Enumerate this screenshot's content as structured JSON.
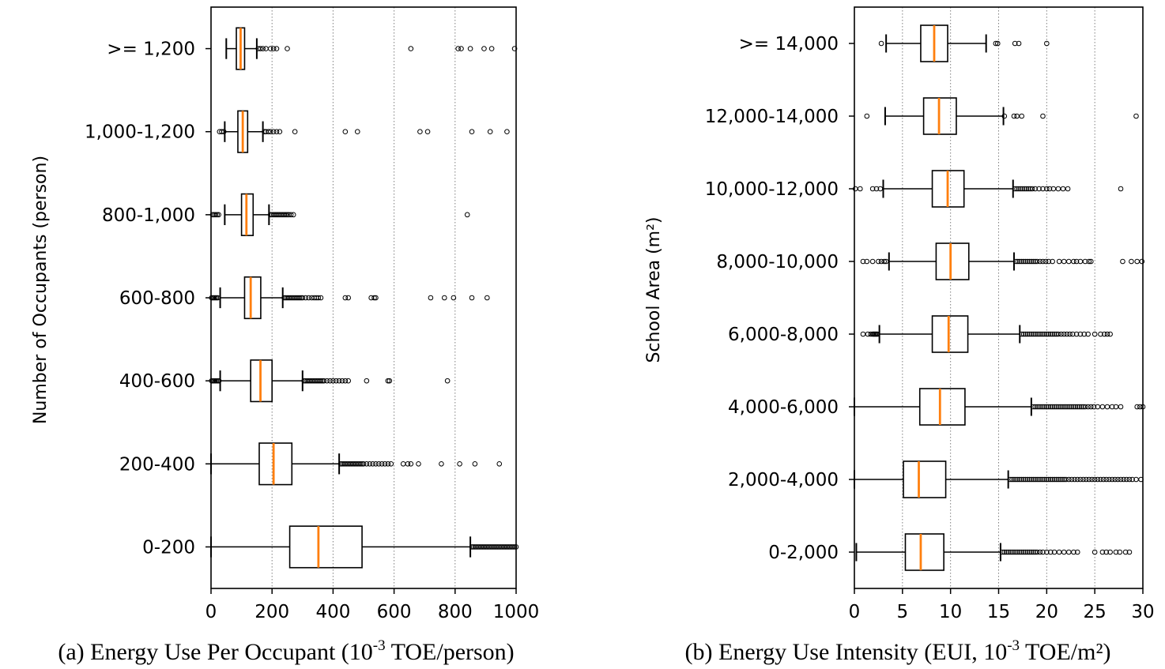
{
  "chart_data": [
    {
      "type": "boxplot",
      "orientation": "horizontal",
      "caption": "(a) Energy Use Per Occupant (10",
      "caption_sup": "-3",
      "caption_tail": " TOE/person)",
      "ylabel": "Number of Occupants (person)",
      "xlim": [
        0,
        1000
      ],
      "xticks": [
        0,
        200,
        400,
        600,
        800,
        1000
      ],
      "grid": "vertical dotted",
      "categories": [
        {
          "label": ">= 1,200",
          "whislo": 50,
          "q1": 83,
          "med": 97,
          "q3": 110,
          "whishi": 150,
          "fliers": [
            155,
            162,
            170,
            180,
            195,
            205,
            215,
            250,
            655,
            810,
            820,
            850,
            895,
            920,
            995
          ]
        },
        {
          "label": "1,000-1,200",
          "whislo": 45,
          "q1": 88,
          "med": 104,
          "q3": 120,
          "whishi": 170,
          "fliers": [
            28,
            35,
            42,
            175,
            180,
            188,
            195,
            205,
            215,
            225,
            275,
            440,
            480,
            685,
            710,
            855,
            915,
            970
          ]
        },
        {
          "label": "800-1,000",
          "whislo": 45,
          "q1": 100,
          "med": 116,
          "q3": 138,
          "whishi": 190,
          "fliers": [
            5,
            10,
            15,
            20,
            25,
            195,
            200,
            205,
            210,
            215,
            220,
            225,
            230,
            235,
            240,
            245,
            250,
            255,
            262,
            270,
            840
          ]
        },
        {
          "label": "600-800",
          "whislo": 30,
          "q1": 110,
          "med": 130,
          "q3": 163,
          "whishi": 235,
          "fliers": [
            2,
            6,
            10,
            14,
            18,
            22,
            240,
            245,
            250,
            255,
            260,
            265,
            270,
            275,
            280,
            285,
            290,
            295,
            300,
            310,
            320,
            330,
            338,
            345,
            352,
            360,
            440,
            450,
            525,
            535,
            540,
            720,
            765,
            795,
            855,
            905
          ]
        },
        {
          "label": "400-600",
          "whislo": 30,
          "q1": 130,
          "med": 162,
          "q3": 200,
          "whishi": 300,
          "fliers": [
            2,
            6,
            10,
            14,
            18,
            22,
            26,
            305,
            310,
            315,
            320,
            325,
            330,
            335,
            340,
            345,
            350,
            355,
            360,
            365,
            370,
            380,
            390,
            400,
            410,
            420,
            430,
            440,
            450,
            510,
            580,
            585,
            775
          ]
        },
        {
          "label": "200-400",
          "whislo": 0,
          "q1": 158,
          "med": 205,
          "q3": 265,
          "whishi": 420,
          "fliers": [
            425,
            430,
            435,
            440,
            445,
            450,
            455,
            460,
            465,
            470,
            475,
            480,
            485,
            490,
            495,
            500,
            510,
            520,
            530,
            540,
            550,
            560,
            570,
            580,
            590,
            630,
            645,
            655,
            680,
            755,
            815,
            865,
            945
          ]
        },
        {
          "label": "0-200",
          "whislo": 0,
          "q1": 258,
          "med": 352,
          "q3": 495,
          "whishi": 850,
          "fliers": [
            855,
            860,
            865,
            870,
            875,
            880,
            885,
            890,
            895,
            900,
            905,
            910,
            915,
            920,
            925,
            930,
            935,
            940,
            945,
            950,
            955,
            960,
            965,
            970,
            975,
            980,
            985,
            990,
            995,
            1000
          ]
        }
      ]
    },
    {
      "type": "boxplot",
      "orientation": "horizontal",
      "caption": "(b) Energy Use Intensity (EUI, 10",
      "caption_sup": "-3",
      "caption_tail": " TOE/m²)",
      "ylabel": "School Area (m²)",
      "xlim": [
        0,
        30
      ],
      "xticks": [
        0,
        5,
        10,
        15,
        20,
        25,
        30
      ],
      "grid": "vertical dotted",
      "categories": [
        {
          "label": ">= 14,000",
          "whislo": 3.3,
          "q1": 6.9,
          "med": 8.3,
          "q3": 9.7,
          "whishi": 13.7,
          "fliers": [
            2.8,
            14.7,
            14.9,
            16.7,
            17.1,
            20.0
          ]
        },
        {
          "label": "12,000-14,000",
          "whislo": 3.2,
          "q1": 7.2,
          "med": 8.8,
          "q3": 10.6,
          "whishi": 15.5,
          "fliers": [
            1.3,
            15.6,
            16.6,
            16.9,
            17.4,
            19.6,
            29.3
          ]
        },
        {
          "label": "10,000-12,000",
          "whislo": 3.0,
          "q1": 8.1,
          "med": 9.7,
          "q3": 11.4,
          "whishi": 16.5,
          "fliers": [
            0.1,
            0.6,
            1.9,
            2.3,
            2.7,
            16.7,
            16.9,
            17.1,
            17.3,
            17.5,
            17.7,
            17.9,
            18.1,
            18.3,
            18.5,
            18.8,
            19.2,
            19.6,
            20.0,
            20.3,
            20.7,
            21.2,
            21.7,
            22.2,
            27.7
          ]
        },
        {
          "label": "8,000-10,000",
          "whislo": 3.6,
          "q1": 8.5,
          "med": 10.0,
          "q3": 11.9,
          "whishi": 16.6,
          "fliers": [
            0.9,
            1.3,
            1.9,
            2.5,
            2.8,
            3.1,
            3.3,
            16.8,
            17.0,
            17.2,
            17.4,
            17.6,
            17.8,
            18.0,
            18.2,
            18.4,
            18.6,
            18.8,
            19.0,
            19.3,
            19.6,
            19.9,
            20.2,
            20.6,
            21.3,
            21.8,
            22.3,
            22.8,
            23.1,
            23.5,
            24.0,
            24.4,
            24.6,
            27.9,
            28.8,
            29.4,
            29.9
          ]
        },
        {
          "label": "6,000-8,000",
          "whislo": 2.6,
          "q1": 8.1,
          "med": 9.8,
          "q3": 11.8,
          "whishi": 17.2,
          "fliers": [
            0.9,
            1.4,
            1.7,
            1.9,
            2.0,
            2.1,
            2.2,
            2.3,
            2.4,
            17.4,
            17.6,
            17.8,
            18.0,
            18.2,
            18.4,
            18.6,
            18.8,
            19.0,
            19.2,
            19.4,
            19.6,
            19.8,
            20.0,
            20.2,
            20.4,
            20.6,
            20.8,
            21.0,
            21.2,
            21.5,
            21.8,
            22.1,
            22.4,
            22.7,
            23.1,
            23.5,
            23.9,
            24.3,
            25.0,
            25.6,
            26.0,
            26.3,
            26.6
          ]
        },
        {
          "label": "4,000-6,000",
          "whislo": 0,
          "q1": 6.8,
          "med": 8.9,
          "q3": 11.5,
          "whishi": 18.4,
          "fliers": [
            18.6,
            18.8,
            19.0,
            19.2,
            19.4,
            19.6,
            19.8,
            20.0,
            20.2,
            20.4,
            20.6,
            20.8,
            21.0,
            21.2,
            21.4,
            21.6,
            21.8,
            22.0,
            22.2,
            22.4,
            22.6,
            22.8,
            23.0,
            23.2,
            23.4,
            23.6,
            23.8,
            24.0,
            24.3,
            24.6,
            24.9,
            25.3,
            25.8,
            26.3,
            26.8,
            27.2,
            27.7,
            29.4,
            29.7,
            30.0
          ]
        },
        {
          "label": "2,000-4,000",
          "whislo": 0,
          "q1": 5.1,
          "med": 6.7,
          "q3": 9.5,
          "whishi": 16.0,
          "fliers": [
            16.2,
            16.4,
            16.6,
            16.8,
            17.0,
            17.2,
            17.4,
            17.6,
            17.8,
            18.0,
            18.2,
            18.4,
            18.6,
            18.8,
            19.0,
            19.2,
            19.4,
            19.6,
            19.8,
            20.0,
            20.2,
            20.4,
            20.6,
            20.8,
            21.0,
            21.2,
            21.4,
            21.6,
            21.8,
            22.0,
            22.3,
            22.6,
            22.9,
            23.2,
            23.5,
            23.8,
            24.1,
            24.4,
            24.7,
            25.0,
            25.3,
            25.6,
            25.9,
            26.2,
            26.5,
            26.8,
            27.1,
            27.4,
            27.7,
            28.0,
            28.3,
            28.6,
            28.9,
            29.3,
            29.8
          ]
        },
        {
          "label": "0-2,000",
          "whislo": 0.2,
          "q1": 5.3,
          "med": 6.9,
          "q3": 9.3,
          "whishi": 15.2,
          "fliers": [
            15.4,
            15.6,
            15.8,
            16.0,
            16.2,
            16.4,
            16.6,
            16.8,
            17.0,
            17.2,
            17.4,
            17.6,
            17.8,
            18.0,
            18.2,
            18.4,
            18.6,
            18.8,
            19.0,
            19.3,
            19.6,
            20.0,
            20.4,
            20.8,
            21.3,
            21.8,
            22.3,
            22.8,
            23.2,
            25.0,
            25.8,
            26.2,
            26.6,
            27.2,
            27.6,
            28.2,
            28.6
          ]
        }
      ]
    }
  ]
}
